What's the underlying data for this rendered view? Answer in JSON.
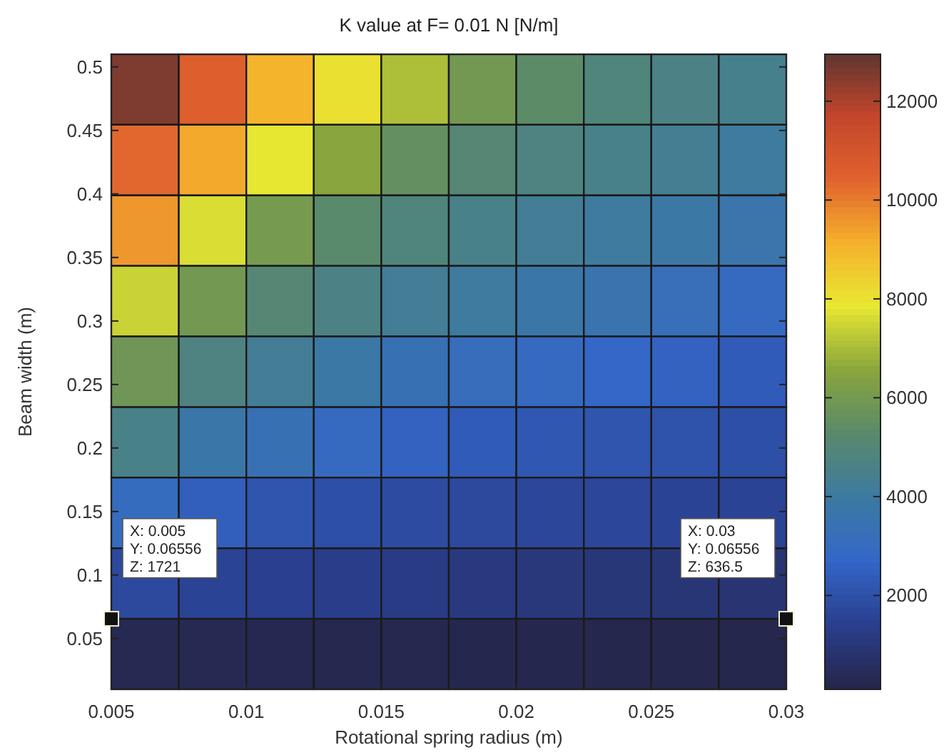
{
  "chart_data": {
    "type": "heatmap",
    "title": "K value at F= 0.01 N [N/m]",
    "xlabel": "Rotational spring radius (m)",
    "ylabel": "Beam width (m)",
    "x": [
      0.00625,
      0.00875,
      0.01125,
      0.01375,
      0.01625,
      0.01875,
      0.02125,
      0.02375,
      0.02625,
      0.02875
    ],
    "y": [
      0.4822,
      0.4267,
      0.3711,
      0.3156,
      0.26,
      0.2044,
      0.1489,
      0.0933,
      0.0378
    ],
    "xlim": [
      0.005,
      0.03
    ],
    "xticks": [
      0.005,
      0.01,
      0.015,
      0.02,
      0.025,
      0.03
    ],
    "ylim": [
      0.01,
      0.51
    ],
    "yticks": [
      0.05,
      0.1,
      0.15,
      0.2,
      0.25,
      0.3,
      0.35,
      0.4,
      0.45,
      0.5
    ],
    "clim": [
      100,
      12950
    ],
    "cticks": [
      2000,
      4000,
      6000,
      8000,
      10000,
      12000
    ],
    "cells": [
      [
        12500,
        10500,
        9000,
        8000,
        7000,
        5900,
        5300,
        4800,
        4600,
        4400
      ],
      [
        10300,
        9200,
        7800,
        6500,
        5500,
        5000,
        4700,
        4500,
        4300,
        4000
      ],
      [
        9500,
        7600,
        6000,
        5200,
        4800,
        4500,
        4200,
        4000,
        3800,
        3600
      ],
      [
        7400,
        5900,
        5000,
        4600,
        4200,
        4000,
        3700,
        3500,
        3200,
        2900
      ],
      [
        5800,
        4700,
        4200,
        3800,
        3300,
        3100,
        2900,
        2700,
        2500,
        2300
      ],
      [
        4500,
        3700,
        3300,
        2900,
        2500,
        2300,
        2200,
        2100,
        2000,
        1900
      ],
      [
        3000,
        2400,
        2100,
        1900,
        1800,
        1700,
        1600,
        1600,
        1500,
        1500
      ],
      [
        1721,
        1500,
        1400,
        1300,
        1200,
        1100,
        1000,
        950,
        900,
        850
      ],
      [
        250,
        230,
        210,
        200,
        190,
        180,
        170,
        160,
        150,
        140
      ]
    ],
    "annotations": [
      "X: 0.005\nY: 0.06556\nZ: 1721",
      "X: 0.03\nY: 0.06556\nZ: 636.5"
    ]
  }
}
